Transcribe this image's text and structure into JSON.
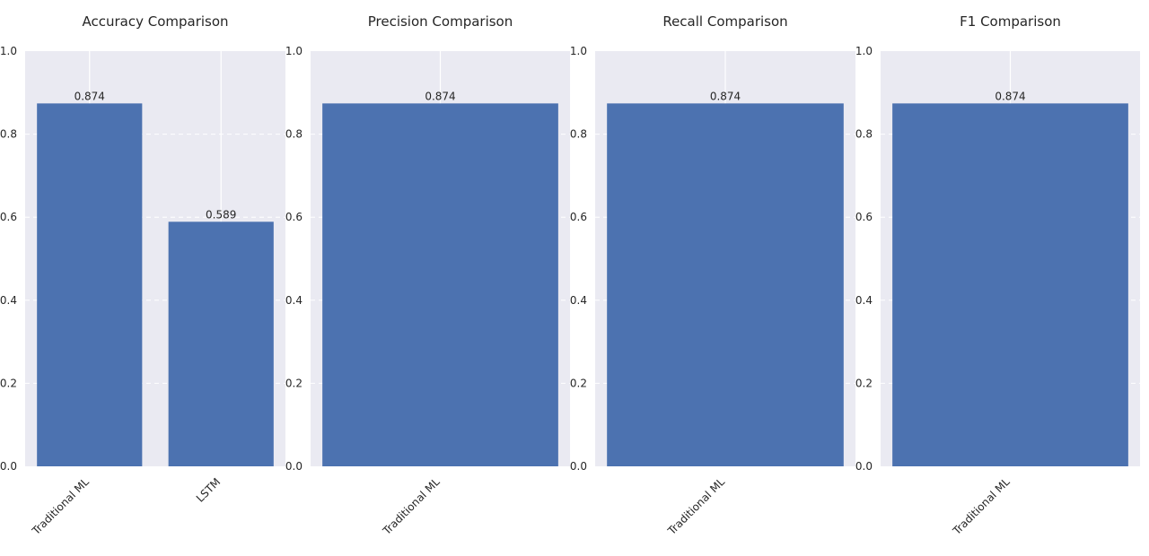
{
  "chart_data": [
    {
      "type": "bar",
      "title": "Accuracy Comparison",
      "categories": [
        "Traditional ML",
        "LSTM"
      ],
      "values": [
        0.874,
        0.589
      ],
      "value_labels": [
        "0.874",
        "0.589"
      ],
      "ylim": [
        0,
        1.0
      ],
      "yticks": [
        "0.0",
        "0.2",
        "0.4",
        "0.6",
        "0.8",
        "1.0"
      ],
      "grid": true
    },
    {
      "type": "bar",
      "title": "Precision Comparison",
      "categories": [
        "Traditional ML"
      ],
      "values": [
        0.874
      ],
      "value_labels": [
        "0.874"
      ],
      "ylim": [
        0,
        1.0
      ],
      "yticks": [
        "0.0",
        "0.2",
        "0.4",
        "0.6",
        "0.8",
        "1.0"
      ],
      "grid": true
    },
    {
      "type": "bar",
      "title": "Recall Comparison",
      "categories": [
        "Traditional ML"
      ],
      "values": [
        0.874
      ],
      "value_labels": [
        "0.874"
      ],
      "ylim": [
        0,
        1.0
      ],
      "yticks": [
        "0.0",
        "0.2",
        "0.4",
        "0.6",
        "0.8",
        "1.0"
      ],
      "grid": true
    },
    {
      "type": "bar",
      "title": "F1 Comparison",
      "categories": [
        "Traditional ML"
      ],
      "values": [
        0.874
      ],
      "value_labels": [
        "0.874"
      ],
      "ylim": [
        0,
        1.0
      ],
      "yticks": [
        "0.0",
        "0.2",
        "0.4",
        "0.6",
        "0.8",
        "1.0"
      ],
      "grid": true
    }
  ],
  "colors": {
    "bar": "#4c72b0",
    "axes_bg": "#eaeaf2",
    "grid": "#ffffff",
    "text": "#262626"
  }
}
